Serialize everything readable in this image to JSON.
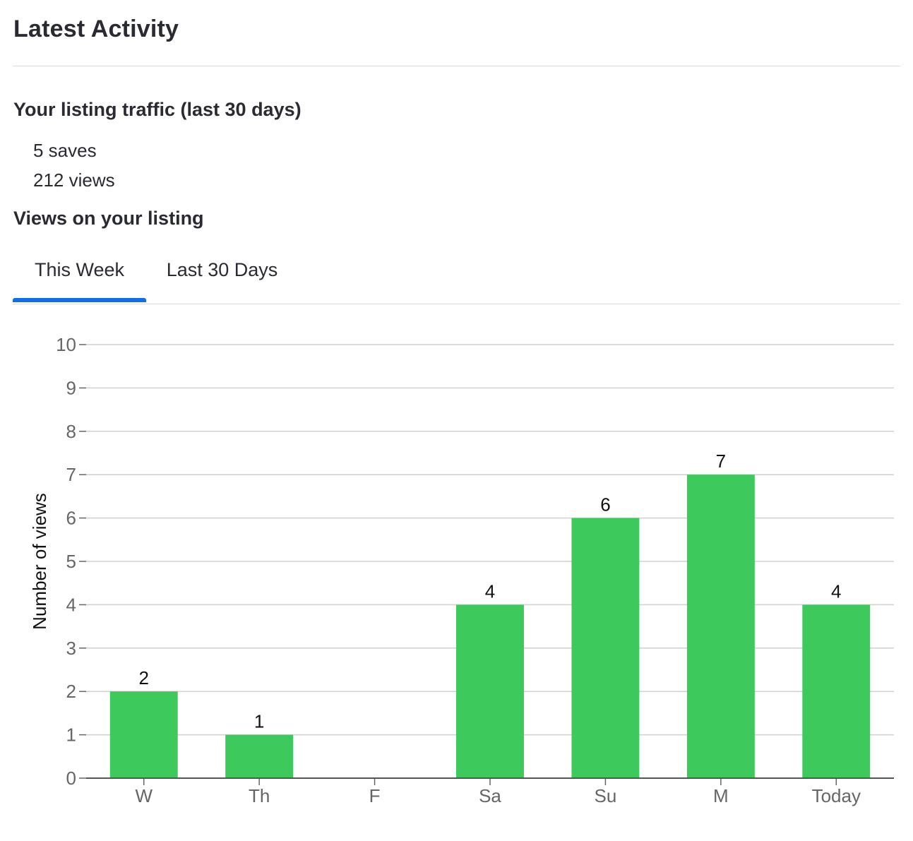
{
  "header": {
    "title": "Latest Activity"
  },
  "traffic": {
    "heading": "Your listing traffic (last 30 days)",
    "saves": "5 saves",
    "views": "212 views"
  },
  "views_section": {
    "heading": "Views on your listing",
    "tabs": [
      {
        "label": "This Week",
        "active": true
      },
      {
        "label": "Last 30 Days",
        "active": false
      }
    ]
  },
  "colors": {
    "bar": "#3ec95c",
    "accent": "#0f6ee8",
    "grid": "#d0d0d0"
  },
  "chart_data": {
    "type": "bar",
    "categories": [
      "W",
      "Th",
      "F",
      "Sa",
      "Su",
      "M",
      "Today"
    ],
    "values": [
      2,
      1,
      0,
      4,
      6,
      7,
      4
    ],
    "data_labels": [
      "2",
      "1",
      "",
      "4",
      "6",
      "7",
      "4"
    ],
    "ylabel": "Number of views",
    "xlabel": "",
    "ylim": [
      0,
      10
    ],
    "yticks": [
      0,
      1,
      2,
      3,
      4,
      5,
      6,
      7,
      8,
      9,
      10
    ],
    "grid": true
  }
}
